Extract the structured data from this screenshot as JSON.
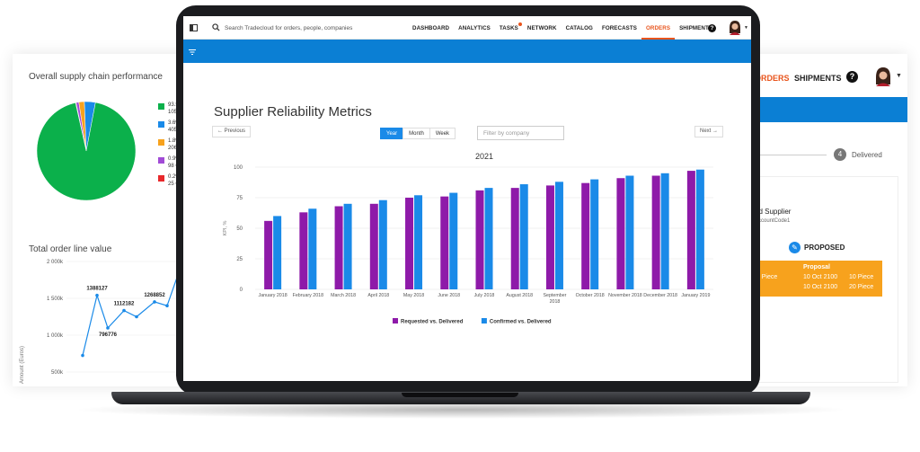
{
  "background_left": {
    "pie_title": "Overall supply chain performance",
    "pie_legend": [
      {
        "pct": "93.5% C",
        "count": "10543",
        "color": "#0bb04b"
      },
      {
        "pct": "3.6% Tr",
        "count": "405 Or",
        "color": "#1a8ae8"
      },
      {
        "pct": "1.8% In",
        "count": "206 Ord",
        "color": "#f7a21d"
      },
      {
        "pct": "0.9% Tr",
        "count": "98 Ord",
        "color": "#a14bd6"
      },
      {
        "pct": "0.2% Or",
        "count": "25 Ord",
        "color": "#e8282b"
      }
    ],
    "pie_slices": [
      93.5,
      3.6,
      1.8,
      0.9,
      0.2
    ],
    "line_title": "Total order line value",
    "line_ylabel": "Amount (Euros)",
    "line_yticks": [
      "2 000k",
      "1 500k",
      "1 000k",
      "500k"
    ],
    "line_labels": [
      "1388127",
      "796776",
      "1112182",
      "1268852",
      "12"
    ]
  },
  "background_right": {
    "nav_orders": "ORDERS",
    "nav_shipments": "SHIPMENTS",
    "help": "?",
    "step_num": "4",
    "step_label": "Delivered",
    "supplier": "ud Supplier",
    "account": "AccountCode1",
    "proposed": "PROPOSED",
    "table": {
      "col_a": "e",
      "col_b": "Proposal",
      "row1": [
        "20 Piece",
        "10 Oct 2100",
        "10 Piece"
      ],
      "row2": [
        "10 Oct 2100",
        "20 Piece"
      ]
    }
  },
  "topbar": {
    "search_placeholder": "Search Tradecloud for orders, people, companies",
    "nav": [
      {
        "label": "DASHBOARD",
        "active": false,
        "dot": false
      },
      {
        "label": "ANALYTICS",
        "active": false,
        "dot": false
      },
      {
        "label": "TASKS",
        "active": false,
        "dot": true
      },
      {
        "label": "NETWORK",
        "active": false,
        "dot": false
      },
      {
        "label": "CATALOG",
        "active": false,
        "dot": false
      },
      {
        "label": "FORECASTS",
        "active": false,
        "dot": false
      },
      {
        "label": "ORDERS",
        "active": true,
        "dot": false
      },
      {
        "label": "SHIPMENTS",
        "active": false,
        "dot": false
      }
    ],
    "help": "?",
    "accent_color": "#e8541c",
    "bar_color": "#0b7fd4"
  },
  "page": {
    "title": "Supplier Reliability Metrics",
    "prev_label": "← Previous",
    "next_label": "Next →",
    "segments": [
      {
        "label": "Year",
        "on": true
      },
      {
        "label": "Month",
        "on": false
      },
      {
        "label": "Week",
        "on": false
      }
    ],
    "filter_placeholder": "Filter by company"
  },
  "chart_data": {
    "type": "bar",
    "title": "2021",
    "ylabel": "KPI, %",
    "xlabel": "",
    "ylim": [
      0,
      100
    ],
    "yticks": [
      0,
      25,
      50,
      75,
      100
    ],
    "categories": [
      "January 2018",
      "February 2018",
      "March 2018",
      "April 2018",
      "May 2018",
      "June 2018",
      "July 2018",
      "August 2018",
      "September 2018",
      "October 2018",
      "November 2018",
      "December 2018",
      "January 2019"
    ],
    "series": [
      {
        "name": "Requested vs. Delivered",
        "color": "#8e1aa9",
        "values": [
          56,
          63,
          68,
          70,
          75,
          76,
          81,
          83,
          85,
          87,
          91,
          93,
          97
        ]
      },
      {
        "name": "Confirmed vs. Delivered",
        "color": "#1a8ae8",
        "values": [
          60,
          66,
          70,
          73,
          77,
          79,
          83,
          86,
          88,
          90,
          93,
          95,
          98
        ]
      }
    ],
    "grid": true,
    "legend_position": "bottom"
  }
}
